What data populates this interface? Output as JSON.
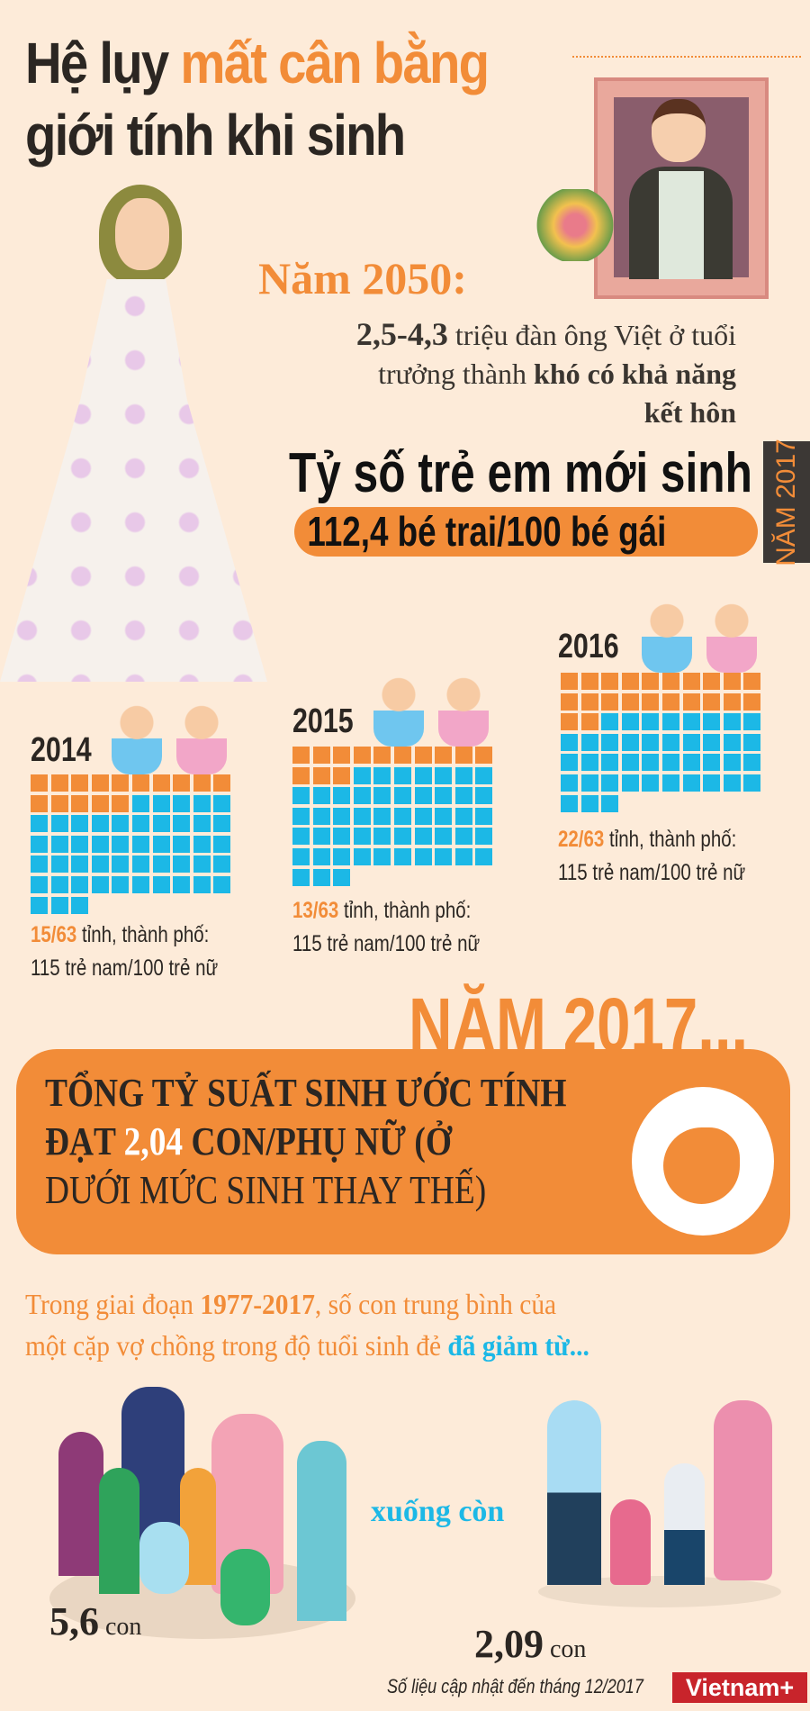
{
  "title": {
    "part1": "Hệ lụy ",
    "part2": "mất cân bằng",
    "line2": "giới tính khi sinh"
  },
  "y2050": {
    "heading": "Năm 2050:",
    "num": "2,5-4,3",
    "text1": " triệu đàn ông Việt ở tuổi",
    "text2a": "trưởng thành ",
    "text2b": "khó có khả năng",
    "text3": "kết hôn"
  },
  "ratio": {
    "heading": "Tỷ số trẻ em mới sinh",
    "value": "112,4 bé trai/100 bé gái",
    "side_label": "NĂM 2017"
  },
  "chart_data": {
    "type": "waffle",
    "total": 63,
    "years": [
      {
        "year": "2014",
        "orange": 15,
        "fraction": "15/63",
        "caption": " tỉnh, thành phố:",
        "caption2": "115 trẻ nam/100 trẻ nữ"
      },
      {
        "year": "2015",
        "orange": 13,
        "fraction": "13/63",
        "caption": " tỉnh, thành phố:",
        "caption2": "115 trẻ nam/100 trẻ nữ"
      },
      {
        "year": "2016",
        "orange": 22,
        "fraction": "22/63",
        "caption": " tỉnh, thành phố:",
        "caption2": "115 trẻ nam/100 trẻ nữ"
      }
    ],
    "colors": {
      "highlight": "#f28c38",
      "rest": "#1cb8e6"
    }
  },
  "y2017": {
    "heading": "NĂM 2017...",
    "line1": "TỔNG TỶ SUẤT SINH ƯỚC TÍNH",
    "line2a": "ĐẠT ",
    "line2b": "2,04",
    "line2c": " CON/PHỤ NỮ (Ở",
    "line3": "DƯỚI MỨC SINH THAY THẾ)",
    "icon": "fetus-icon"
  },
  "period": {
    "a": "Trong giai đoạn ",
    "b": "1977-2017",
    "c": ", số con trung bình của",
    "d": "một cặp vợ chồng trong độ tuổi sinh đẻ ",
    "e": "đã giảm từ..."
  },
  "family": {
    "before_num": "5,6",
    "before_unit": " con",
    "middle": "xuống còn",
    "after_num": "2,09",
    "after_unit": " con"
  },
  "footer": {
    "note": "Số liệu cập nhật đến tháng 12/2017",
    "logo": "Vietnam+"
  },
  "colors": {
    "background": "#fdebd9",
    "orange": "#f28c38",
    "blue": "#1cb8e6",
    "dark": "#2b2622"
  }
}
